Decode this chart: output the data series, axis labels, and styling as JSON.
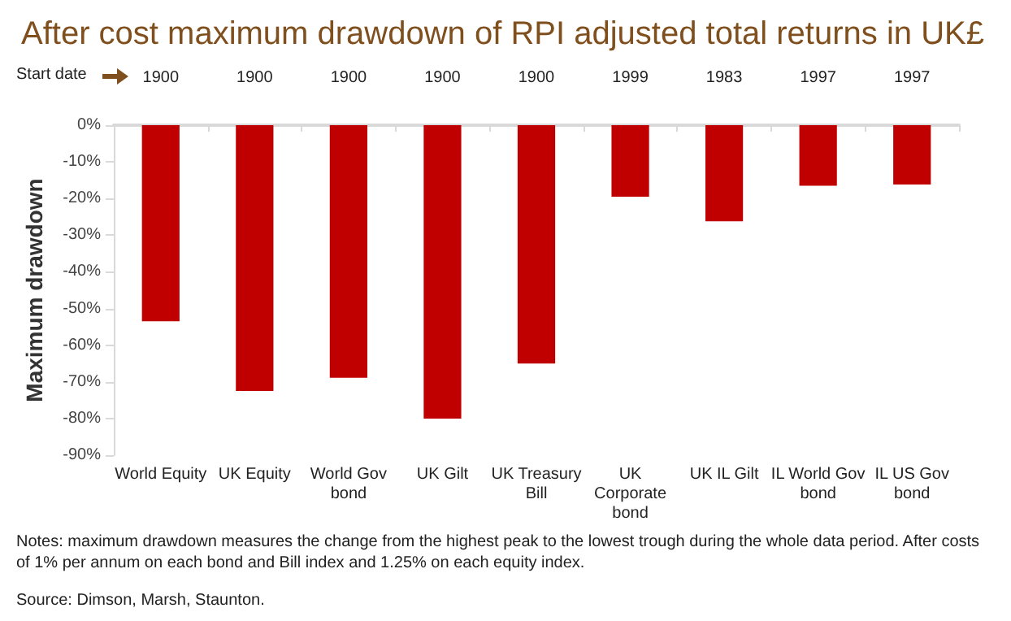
{
  "chart_data": {
    "type": "bar",
    "title": "After cost maximum drawdown of RPI adjusted total returns in UK£",
    "ylabel": "Maximum drawdown",
    "x2label": "Start date",
    "categories": [
      "World Equity",
      "UK Equity",
      "World Gov\nbond",
      "UK Gilt",
      "UK Treasury\nBill",
      "UK\nCorporate\nbond",
      "UK IL Gilt",
      "IL World Gov\nbond",
      "IL US Gov\nbond"
    ],
    "values": [
      -53.5,
      -72.5,
      -68.9,
      -80,
      -65,
      -19.5,
      -26.2,
      -16.5,
      -16.2
    ],
    "color": "#c00000",
    "ylim": [
      -90,
      0
    ],
    "yticks": [
      {
        "value": -90,
        "label": "-90%"
      },
      {
        "value": -80,
        "label": "-80%"
      },
      {
        "value": -70,
        "label": "-70%"
      },
      {
        "value": -60,
        "label": "-60%"
      },
      {
        "value": -50,
        "label": "-50%"
      },
      {
        "value": -40,
        "label": "-40%"
      },
      {
        "value": -30,
        "label": "-30%"
      },
      {
        "value": -20,
        "label": "-20%"
      },
      {
        "value": -10,
        "label": "-10%"
      },
      {
        "value": 0,
        "label": "0%"
      }
    ],
    "grid": false,
    "annotations": [
      "1900",
      "1900",
      "1900",
      "1900",
      "1900",
      "1999",
      "1983",
      "1997",
      "1997",
      "Notes: maximum drawdown measures the change from the highest peak to the lowest trough during the whole data period. After costs of 1% per annum on each bond and Bill index and 1.25% on each equity index.",
      "Source: Dimson, Marsh, Staunton."
    ]
  }
}
